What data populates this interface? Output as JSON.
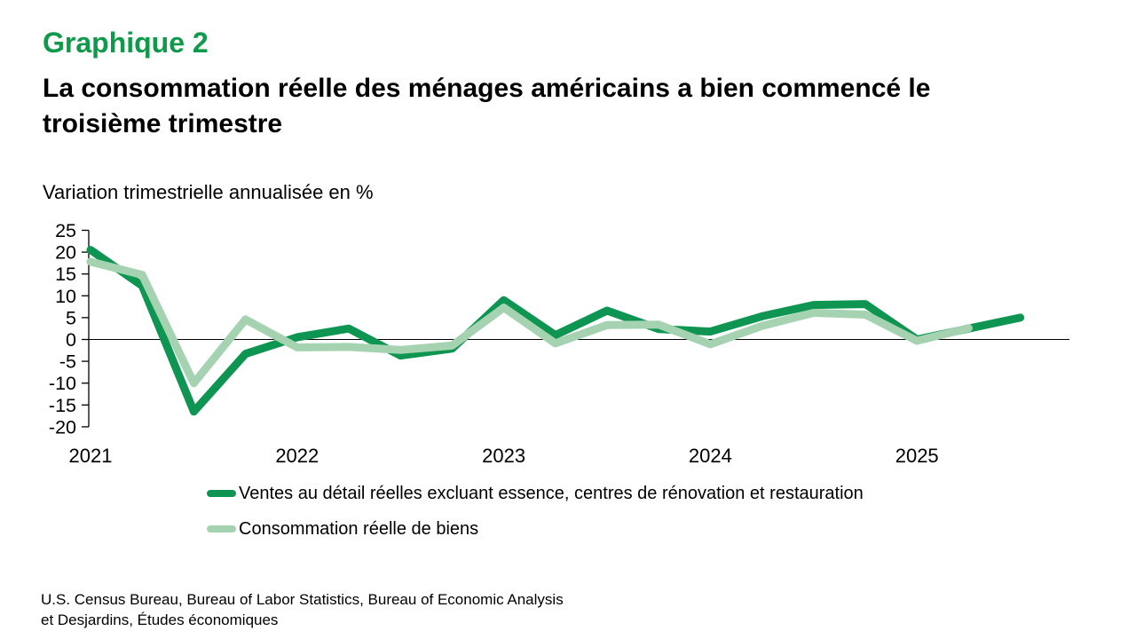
{
  "header": {
    "kicker": "Graphique 2",
    "title_lines": [
      "La consommation réelle des ménages américains a bien commencé le",
      "troisième trimestre"
    ]
  },
  "chart_data": {
    "type": "line",
    "title": "La consommation réelle des ménages américains a bien commencé le troisième trimestre",
    "ylabel": "Variation trimestrielle annualisée en %",
    "xlabel": "",
    "ylim": [
      -20,
      25
    ],
    "ytick_step": 5,
    "grid": false,
    "zero_line": true,
    "legend_position": "bottom",
    "axis_color": "#000000",
    "year_labels": [
      "2021",
      "2022",
      "2023",
      "2024",
      "2025"
    ],
    "categories": [
      "T1 2021",
      "T2 2021",
      "T3 2021",
      "T4 2021",
      "T1 2022",
      "T2 2022",
      "T3 2022",
      "T4 2022",
      "T1 2023",
      "T2 2023",
      "T3 2023",
      "T4 2023",
      "T1 2024",
      "T2 2024",
      "T3 2024",
      "T4 2024",
      "T1 2025",
      "T2 2025",
      "T3 2025"
    ],
    "series": [
      {
        "name": "Ventes au détail réelles excluant essence, centres de rénovation et restauration",
        "color": "#0e9551",
        "values": [
          20.5,
          12.3,
          -16.5,
          -3.3,
          0.5,
          2.5,
          -3.7,
          -2.1,
          9.0,
          1.0,
          6.6,
          2.4,
          1.8,
          5.3,
          7.9,
          8.1,
          0.0,
          2.5,
          5.0
        ]
      },
      {
        "name": "Consommation réelle de biens",
        "color": "#a5d3b1",
        "values": [
          17.8,
          14.8,
          -10.0,
          4.6,
          -1.8,
          -1.7,
          -2.4,
          -1.4,
          7.3,
          -0.9,
          3.3,
          3.4,
          -1.1,
          3.1,
          6.1,
          5.7,
          -0.3,
          2.6,
          null
        ]
      }
    ]
  },
  "colors": {
    "kicker_green": "#0f9a4b"
  },
  "source": {
    "lines": [
      "U.S. Census Bureau, Bureau of Labor Statistics, Bureau of Economic Analysis",
      "et Desjardins, Études économiques"
    ]
  }
}
